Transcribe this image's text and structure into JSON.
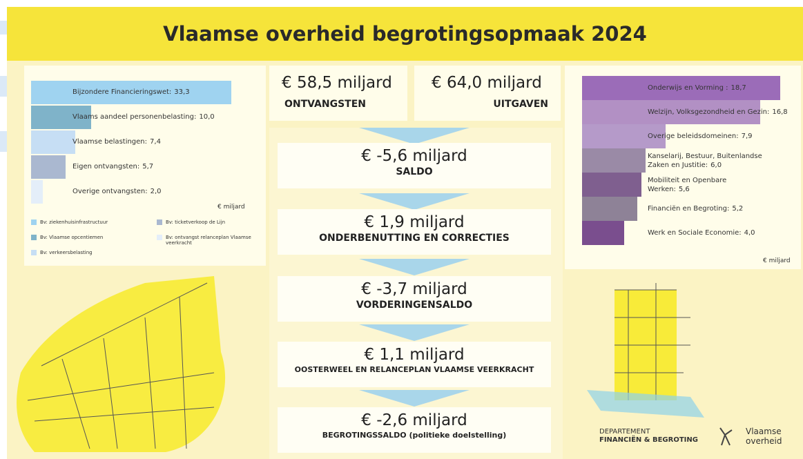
{
  "title": "Vlaamse overheid begrotingsopmaak 2024",
  "income_chart": {
    "unit": "€ miljard",
    "bars": [
      {
        "label": "Bijzondere Financieringswet:",
        "value": 33.3,
        "value_label": "33,3",
        "color": "#9fd3f0"
      },
      {
        "label": "Vlaams aandeel personenbelasting:",
        "value": 10.0,
        "value_label": "10,0",
        "color": "#7fb3c9"
      },
      {
        "label": "Vlaamse belastingen:",
        "value": 7.4,
        "value_label": "7,4",
        "color": "#c6def4"
      },
      {
        "label": "Eigen ontvangsten:",
        "value": 5.7,
        "value_label": "5,7",
        "color": "#aab8d0"
      },
      {
        "label": "Overige ontvangsten:",
        "value": 2.0,
        "value_label": "2,0",
        "color": "#e4eef9"
      }
    ],
    "legend": [
      {
        "label": "Bv: ziekenhuisinfrastructuur",
        "color": "#9fd3f0"
      },
      {
        "label": "Bv: Vlaamse opcentiemen",
        "color": "#7fb3c9"
      },
      {
        "label": "Bv: verkeersbelasting",
        "color": "#c6def4"
      },
      {
        "label": "Bv: ticketverkoop de Lijn",
        "color": "#aab8d0"
      },
      {
        "label": "Bv: ontvangst relanceplan Vlaamse veerkracht",
        "color": "#e4eef9"
      }
    ]
  },
  "spending_chart": {
    "unit": "€ miljard",
    "bars": [
      {
        "label": "Onderwijs en Vorming :",
        "value": 18.7,
        "value_label": "18,7",
        "color": "#9b6cb8"
      },
      {
        "label": "Welzijn, Volksgezondheid en Gezin:",
        "value": 16.8,
        "value_label": "16,8",
        "color": "#b290c4"
      },
      {
        "label": "Overige beleidsdomeinen:",
        "value": 7.9,
        "value_label": "7,9",
        "color": "#b59ac9"
      },
      {
        "label": "Kanselarij, Bestuur, Buitenlandse Zaken en Justitie:",
        "value": 6.0,
        "value_label": "6,0",
        "color": "#9a8aa6"
      },
      {
        "label": "Mobiliteit en Openbare Werken:",
        "value": 5.6,
        "value_label": "5,6",
        "color": "#7f5f8f"
      },
      {
        "label": "Financiën en Begroting:",
        "value": 5.2,
        "value_label": "5,2",
        "color": "#8e8297"
      },
      {
        "label": "Werk en Sociale Economie:",
        "value": 4.0,
        "value_label": "4,0",
        "color": "#7a4e8e"
      }
    ]
  },
  "totals": [
    {
      "amount": "€ 58,5 miljard",
      "label": "ONTVANGSTEN"
    },
    {
      "amount": "€ 64,0 miljard",
      "label": "UITGAVEN"
    }
  ],
  "flow": [
    {
      "amount": "€ -5,6 miljard",
      "label": "SALDO"
    },
    {
      "amount": "€ 1,9 miljard",
      "label": "ONDERBENUTTING EN CORRECTIES"
    },
    {
      "amount": "€ -3,7 miljard",
      "label": "VORDERINGENSALDO"
    },
    {
      "amount": "€ 1,1 miljard",
      "label": "OOSTERWEEL EN RELANCEPLAN VLAAMSE VEERKRACHT"
    },
    {
      "amount": "€ -2,6 miljard",
      "label": "BEGROTINGSSALDO (politieke doelstelling)"
    }
  ],
  "logo": {
    "department_line1": "DEPARTEMENT",
    "department_line2": "FINANCIËN & BEGROTING",
    "brand_line1": "Vlaamse",
    "brand_line2": "overheid"
  }
}
